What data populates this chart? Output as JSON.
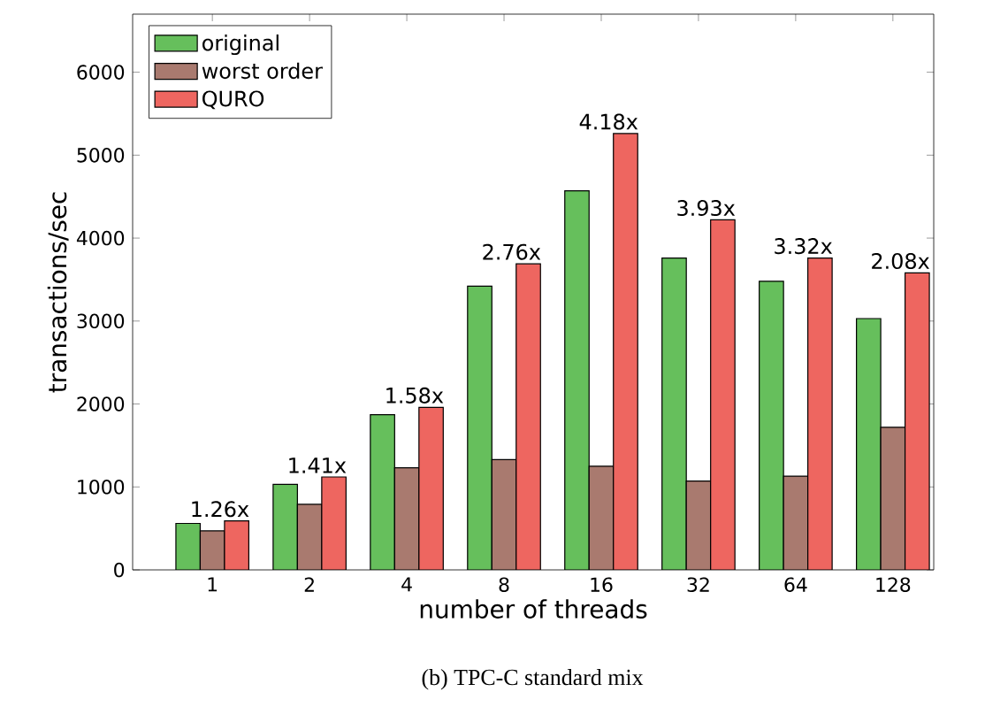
{
  "chart_data": {
    "type": "bar",
    "xlabel": "number of threads",
    "ylabel": "transactions/sec",
    "categories": [
      "1",
      "2",
      "4",
      "8",
      "16",
      "32",
      "64",
      "128"
    ],
    "series": [
      {
        "name": "original",
        "color": "#66bf5c",
        "values": [
          560,
          1030,
          1870,
          3420,
          4570,
          3760,
          3480,
          3030
        ]
      },
      {
        "name": "worst order",
        "color": "#a97a6f",
        "values": [
          470,
          790,
          1230,
          1330,
          1250,
          1070,
          1130,
          1720
        ]
      },
      {
        "name": "QURO",
        "color": "#ee6660",
        "values": [
          590,
          1120,
          1960,
          3690,
          5260,
          4220,
          3760,
          3580
        ]
      }
    ],
    "ylim": [
      0,
      6700
    ],
    "yticks": [
      0,
      1000,
      2000,
      3000,
      4000,
      5000,
      6000
    ],
    "grid": false,
    "legend": "top left",
    "annotations": [
      "1.26x",
      "1.41x",
      "1.58x",
      "2.76x",
      "4.18x",
      "3.93x",
      "3.32x",
      "2.08x",
      "(b) TPC-C standard mix"
    ]
  }
}
